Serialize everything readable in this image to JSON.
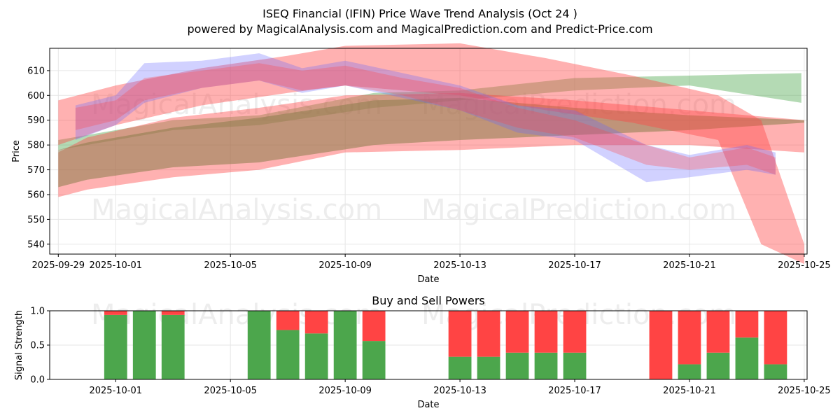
{
  "title_line1": "ISEQ Financial (IFIN) Price Wave Trend Analysis (Oct 24 )",
  "title_line2": "powered by MagicalAnalysis.com and MagicalPrediction.com and Predict-Price.com",
  "watermarks": [
    "MagicalAnalysis.com",
    "MagicalPrediction.com"
  ],
  "colors": {
    "green": "#4ca64c",
    "red": "#ff4444",
    "blue": "#6666ff",
    "brown": "#8b7c4a"
  },
  "chart_data": [
    {
      "type": "area",
      "title": "",
      "xlabel": "Date",
      "ylabel": "Price",
      "ylim": [
        536,
        619
      ],
      "xlim_days_from_2025_09_29": [
        -0.3,
        26.1
      ],
      "x_tick_labels": [
        "2025-09-29",
        "2025-10-01",
        "2025-10-05",
        "2025-10-09",
        "2025-10-13",
        "2025-10-17",
        "2025-10-21",
        "2025-10-25"
      ],
      "x_tick_days": [
        0,
        2,
        6,
        10,
        14,
        18,
        22,
        26
      ],
      "y_ticks": [
        540,
        550,
        560,
        570,
        580,
        590,
        600,
        610
      ],
      "grid": true,
      "series": [
        {
          "name": "green band",
          "color": "green",
          "x": [
            0,
            2,
            4,
            7,
            11,
            14,
            18,
            22,
            25.9
          ],
          "upper": [
            582,
            586,
            590,
            592,
            601,
            602,
            607,
            608,
            609
          ],
          "lower": [
            578,
            582,
            586,
            588,
            595,
            598,
            602,
            604,
            597
          ]
        },
        {
          "name": "red lower band",
          "color": "red",
          "x": [
            0,
            1,
            4,
            7,
            10,
            14,
            18,
            22,
            26
          ],
          "upper": [
            577,
            583,
            591,
            595,
            600,
            601,
            598,
            594,
            590
          ],
          "lower": [
            559,
            562,
            567,
            570,
            577,
            578,
            580,
            580,
            577
          ]
        },
        {
          "name": "brown band",
          "color": "brown",
          "x": [
            0,
            1,
            4,
            7,
            11,
            14,
            18,
            22,
            26
          ],
          "upper": [
            578,
            581,
            587,
            591,
            598,
            599,
            595,
            592,
            590
          ],
          "lower": [
            563,
            566,
            571,
            573,
            580,
            582,
            584,
            586,
            589
          ]
        },
        {
          "name": "red upper band",
          "color": "red",
          "x": [
            0,
            2,
            5,
            8,
            10,
            14,
            17,
            20,
            23,
            24.5,
            26
          ],
          "upper": [
            598,
            604,
            611,
            616,
            620,
            621,
            615,
            608,
            600,
            590,
            540
          ],
          "lower": [
            580,
            588,
            596,
            601,
            604,
            600,
            594,
            589,
            582,
            540,
            532
          ]
        },
        {
          "name": "blue wave",
          "color": "blue",
          "x": [
            0.6,
            2,
            3,
            5,
            7,
            8.5,
            10,
            12,
            14,
            16,
            18,
            20.5,
            22,
            24,
            25
          ],
          "upper": [
            596,
            600,
            613,
            614,
            617,
            611,
            614,
            609,
            604,
            596,
            594,
            580,
            576,
            580,
            577
          ],
          "lower": [
            582,
            588,
            597,
            603,
            606,
            601,
            604,
            599,
            594,
            585,
            582,
            565,
            567,
            570,
            568
          ]
        },
        {
          "name": "purple wave",
          "color": "red",
          "x": [
            0.6,
            2,
            3,
            5,
            7,
            8.5,
            10,
            12,
            14,
            16,
            18,
            20.5,
            22,
            24,
            25
          ],
          "upper": [
            595,
            598,
            607,
            610,
            613,
            610,
            612,
            607,
            603,
            595,
            590,
            580,
            575,
            579,
            575
          ],
          "lower": [
            586,
            590,
            598,
            603,
            606,
            602,
            604,
            600,
            594,
            587,
            583,
            572,
            570,
            572,
            568
          ]
        }
      ]
    },
    {
      "type": "bar",
      "title": "Buy and Sell Powers",
      "xlabel": "Date",
      "ylabel": "Signal Strength",
      "ylim": [
        0,
        1.0
      ],
      "y_ticks": [
        0.0,
        0.5,
        1.0
      ],
      "y_tick_labels": [
        "0.0",
        "0.5",
        "1.0"
      ],
      "x_tick_labels": [
        "2025-10-01",
        "2025-10-05",
        "2025-10-09",
        "2025-10-13",
        "2025-10-17",
        "2025-10-21",
        "2025-10-25"
      ],
      "x_tick_days": [
        2,
        6,
        10,
        14,
        18,
        22,
        26
      ],
      "days": [
        2,
        3,
        4,
        7,
        8,
        9,
        10,
        11,
        14,
        15,
        16,
        17,
        18,
        21,
        22,
        23,
        24,
        25
      ],
      "buy": [
        0.94,
        1.0,
        0.94,
        1.0,
        0.72,
        0.67,
        1.0,
        0.56,
        0.33,
        0.33,
        0.39,
        0.39,
        0.39,
        0.0,
        0.22,
        0.39,
        0.61,
        0.22
      ],
      "sell": [
        0.06,
        0.0,
        0.06,
        0.0,
        0.28,
        0.33,
        0.0,
        0.44,
        0.67,
        0.67,
        0.61,
        0.61,
        0.61,
        1.0,
        0.78,
        0.61,
        0.39,
        0.78
      ]
    }
  ]
}
